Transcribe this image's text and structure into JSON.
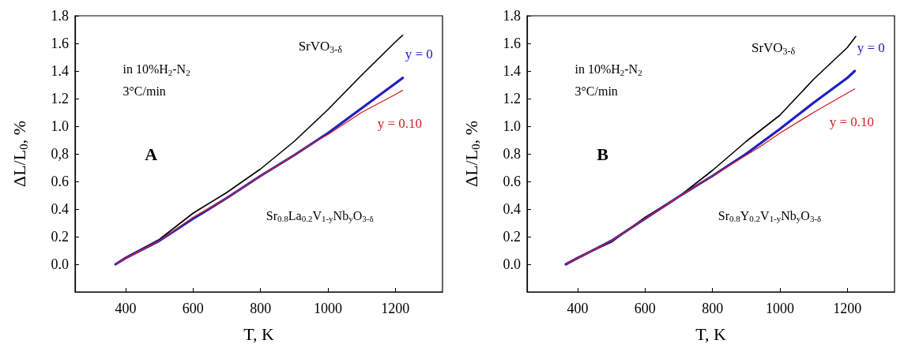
{
  "chart_data": [
    {
      "type": "line",
      "xlabel": "T, K",
      "ylabel": "ΔL/L$_{0}$, %",
      "xlim": [
        250,
        1340
      ],
      "xticks": [
        400,
        600,
        800,
        1000,
        1200
      ],
      "ylim": [
        -0.2,
        1.8
      ],
      "yticks": [
        {
          "value": 0,
          "label": "0.0"
        },
        0.2,
        0.4,
        0.6,
        {
          "value": 0.8,
          "label": "0,8"
        },
        {
          "value": 1,
          "label": "1.0"
        },
        1.2,
        1.4,
        1.6,
        1.8
      ],
      "grid": false,
      "legend": false,
      "marker": "none",
      "line_style": "solid",
      "annotations": [
        "in 10%H$_{2}$-N$_{2}$",
        "3°C/min",
        "A",
        "Sr$_{0.8}$La$_{0.2}$V$_{1-y}$Nb$_{y}$O$_{3-δ}$"
      ],
      "series": [
        {
          "name": "SrVO$_{3-δ}$",
          "color": "#000000",
          "x": [
            370,
            400,
            500,
            600,
            700,
            800,
            900,
            1000,
            1100,
            1200,
            1222
          ],
          "values": [
            0,
            0.05,
            0.18,
            0.37,
            0.52,
            0.69,
            0.89,
            1.12,
            1.37,
            1.61,
            1.66
          ]
        },
        {
          "name": "y = 0",
          "color": "#2020c0",
          "x": [
            370,
            400,
            500,
            600,
            700,
            800,
            900,
            1000,
            1100,
            1200,
            1222
          ],
          "values": [
            0,
            0.045,
            0.17,
            0.33,
            0.48,
            0.64,
            0.79,
            0.95,
            1.13,
            1.31,
            1.35
          ]
        },
        {
          "name": "y = 0.10",
          "color": "#d02020",
          "x": [
            370,
            400,
            500,
            600,
            700,
            800,
            900,
            950,
            1000,
            1100,
            1200,
            1222
          ],
          "values": [
            0,
            0.045,
            0.17,
            0.34,
            0.48,
            0.64,
            0.79,
            0.87,
            0.94,
            1.1,
            1.23,
            1.26
          ]
        }
      ]
    },
    {
      "type": "line",
      "xlabel": "T, K",
      "ylabel": "ΔL/L$_{0}$, %",
      "xlim": [
        250,
        1340
      ],
      "xticks": [
        400,
        600,
        800,
        1000,
        1200
      ],
      "ylim": [
        -0.2,
        1.8
      ],
      "yticks": [
        {
          "value": 0,
          "label": "0.0"
        },
        0.2,
        0.4,
        0.6,
        0.8,
        {
          "value": 1,
          "label": "1.0"
        },
        1.2,
        1.4,
        1.6,
        1.8
      ],
      "grid": false,
      "legend": false,
      "marker": "none",
      "line_style": "solid",
      "annotations": [
        "in 10%H$_{2}$-N$_{2}$",
        "3°C/min",
        "B",
        "Sr$_{0.8}$Y$_{0.2}$V$_{1-y}$Nb$_{y}$O$_{3-δ}$"
      ],
      "series": [
        {
          "name": "SrVO$_{3-δ}$",
          "color": "#000000",
          "x": [
            365,
            400,
            500,
            600,
            700,
            800,
            900,
            1000,
            1100,
            1200,
            1225
          ],
          "values": [
            0,
            0.05,
            0.16,
            0.34,
            0.49,
            0.68,
            0.89,
            1.08,
            1.34,
            1.57,
            1.65
          ]
        },
        {
          "name": "y = 0",
          "color": "#2020c0",
          "x": [
            365,
            400,
            500,
            600,
            700,
            800,
            900,
            1000,
            1100,
            1200,
            1222
          ],
          "values": [
            0,
            0.045,
            0.17,
            0.33,
            0.49,
            0.64,
            0.8,
            0.98,
            1.17,
            1.35,
            1.4
          ]
        },
        {
          "name": "y = 0.10",
          "color": "#d02020",
          "x": [
            365,
            400,
            500,
            600,
            700,
            800,
            900,
            940,
            1000,
            1100,
            1200,
            1222
          ],
          "values": [
            0,
            0.045,
            0.17,
            0.33,
            0.49,
            0.64,
            0.79,
            0.85,
            0.95,
            1.1,
            1.24,
            1.27
          ]
        }
      ]
    }
  ]
}
